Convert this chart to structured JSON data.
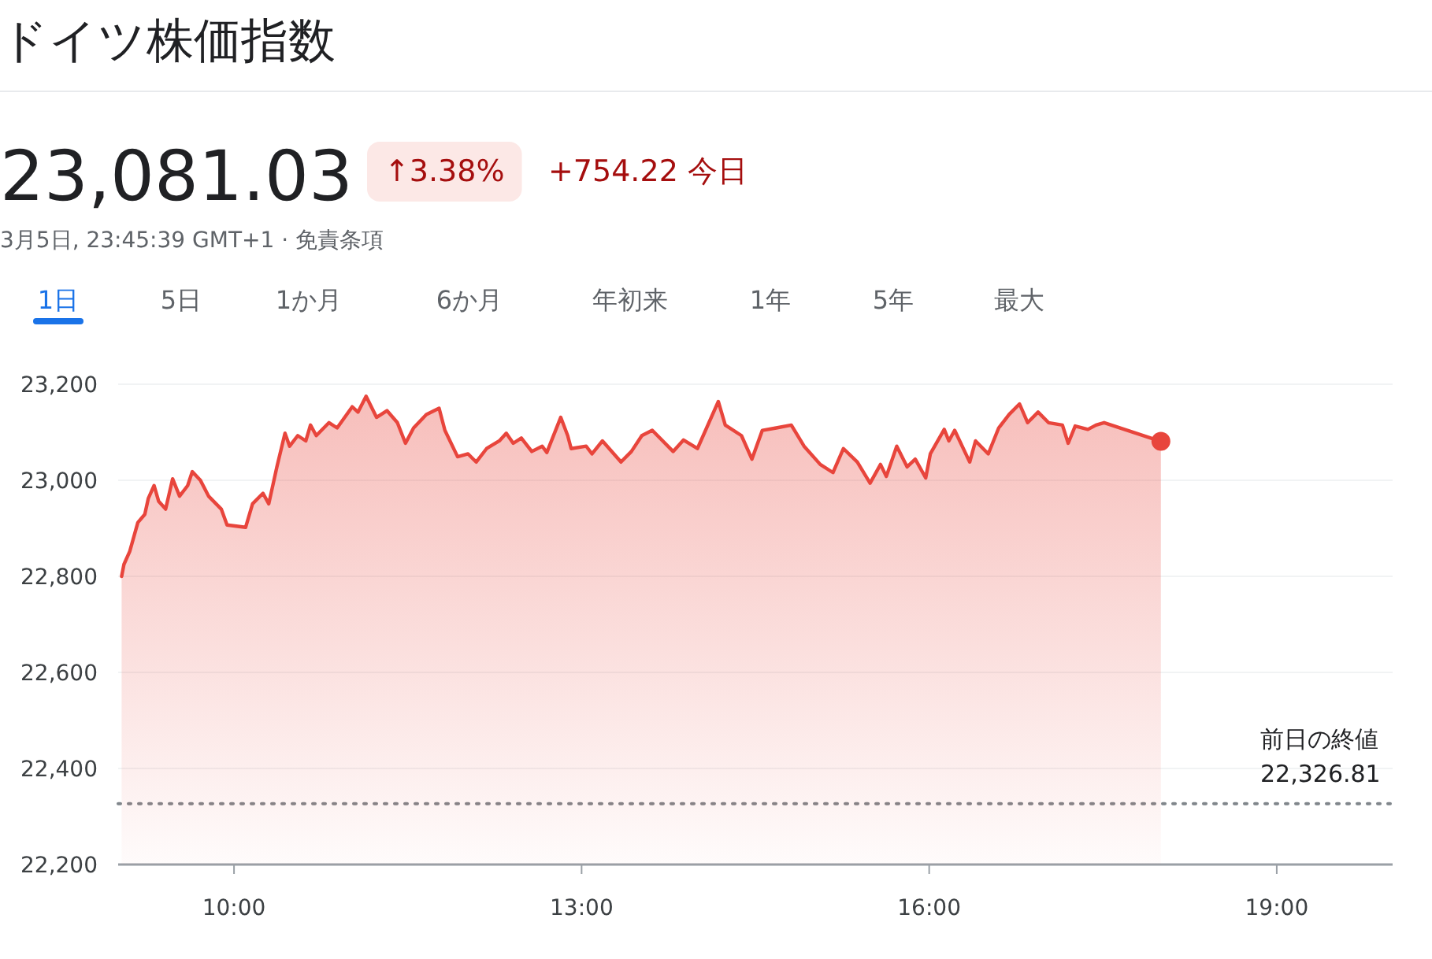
{
  "chart_data": {
    "type": "area",
    "title": "ドイツ株価指数",
    "annotations": [
      "23,081.03",
      "↑3.38%",
      "+754.22 今日",
      "3月5日, 23:45:39 GMT+1 · 免責条項",
      "1日",
      "5日",
      "1か月",
      "6か月",
      "年初来",
      "1年",
      "5年",
      "最大"
    ],
    "xlim": [
      9,
      20
    ],
    "ylim": [
      22200,
      23200
    ],
    "xticks": [
      {
        "value": 10,
        "label": "10:00"
      },
      {
        "value": 13,
        "label": "13:00"
      },
      {
        "value": 16,
        "label": "16:00"
      },
      {
        "value": 19,
        "label": "19:00"
      }
    ],
    "yticks": [
      {
        "value": 22200,
        "label": "22,200"
      },
      {
        "value": 22400,
        "label": "22,400"
      },
      {
        "value": 22600,
        "label": "22,600"
      },
      {
        "value": 22800,
        "label": "22,800"
      },
      {
        "value": 23000,
        "label": "23,000"
      },
      {
        "value": 23200,
        "label": "23,200"
      }
    ],
    "grid": "y",
    "line_style": "solid",
    "ref_lines": [
      {
        "axis": "y",
        "value": 22326.81,
        "label": "前日の終値 22,326.81",
        "color": "#80868b",
        "line_style": "dotted"
      }
    ],
    "series": [
      {
        "color": "#e8453c",
        "x": [
          9.03,
          9.05,
          9.1,
          9.17,
          9.23,
          9.26,
          9.31,
          9.35,
          9.41,
          9.47,
          9.53,
          9.6,
          9.64,
          9.71,
          9.78,
          9.89,
          9.94,
          10.1,
          10.16,
          10.25,
          10.3,
          10.37,
          10.44,
          10.48,
          10.55,
          10.62,
          10.66,
          10.71,
          10.82,
          10.89,
          11.02,
          11.07,
          11.14,
          11.23,
          11.32,
          11.41,
          11.48,
          11.55,
          11.66,
          11.77,
          11.82,
          11.93,
          12.02,
          12.09,
          12.18,
          12.29,
          12.35,
          12.41,
          12.48,
          12.57,
          12.66,
          12.7,
          12.82,
          12.88,
          12.91,
          13.04,
          13.09,
          13.18,
          13.34,
          13.43,
          13.52,
          13.61,
          13.79,
          13.88,
          14.0,
          14.18,
          14.24,
          14.38,
          14.47,
          14.56,
          14.68,
          14.81,
          14.92,
          15.06,
          15.17,
          15.26,
          15.38,
          15.49,
          15.58,
          15.63,
          15.72,
          15.81,
          15.88,
          15.97,
          16.01,
          16.13,
          16.17,
          16.22,
          16.35,
          16.4,
          16.51,
          16.6,
          16.69,
          16.78,
          16.85,
          16.94,
          17.03,
          17.15,
          17.2,
          17.26,
          17.37,
          17.44,
          17.51,
          18.0
        ],
        "values": [
          22800,
          22825,
          22852,
          22912,
          22929,
          22962,
          22989,
          22956,
          22940,
          23003,
          22967,
          22989,
          23018,
          23000,
          22967,
          22940,
          22907,
          22902,
          22951,
          22973,
          22951,
          23028,
          23098,
          23071,
          23093,
          23082,
          23115,
          23093,
          23120,
          23109,
          23153,
          23142,
          23175,
          23131,
          23145,
          23120,
          23077,
          23109,
          23137,
          23150,
          23104,
          23049,
          23055,
          23038,
          23066,
          23082,
          23098,
          23077,
          23088,
          23060,
          23071,
          23058,
          23131,
          23093,
          23066,
          23071,
          23055,
          23082,
          23038,
          23060,
          23093,
          23104,
          23060,
          23084,
          23066,
          23164,
          23115,
          23093,
          23044,
          23104,
          23109,
          23115,
          23071,
          23033,
          23016,
          23066,
          23038,
          22994,
          23033,
          23008,
          23071,
          23028,
          23044,
          23005,
          23055,
          23106,
          23082,
          23104,
          23038,
          23082,
          23055,
          23109,
          23137,
          23159,
          23120,
          23142,
          23120,
          23115,
          23077,
          23113,
          23106,
          23115,
          23120,
          23081.03
        ]
      }
    ]
  }
}
